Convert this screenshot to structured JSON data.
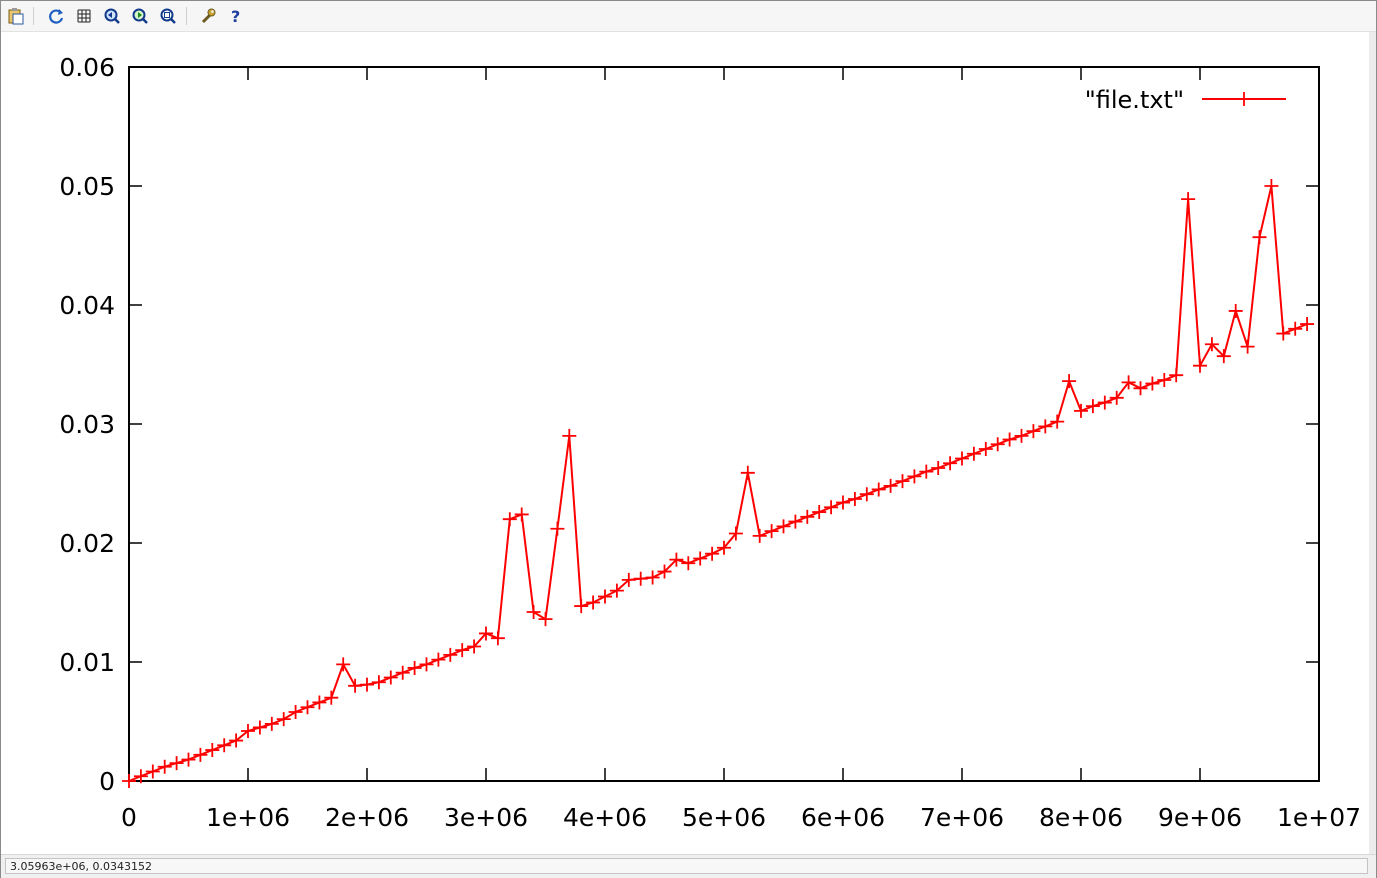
{
  "toolbar": {
    "buttons": [
      {
        "name": "copy-to-clipboard-button",
        "icon": "clipboard-icon"
      },
      {
        "name": "replot-button",
        "icon": "refresh-icon"
      },
      {
        "name": "grid-button",
        "icon": "grid-icon"
      },
      {
        "name": "previous-zoom-button",
        "icon": "zoom-previous-icon"
      },
      {
        "name": "next-zoom-button",
        "icon": "zoom-next-icon"
      },
      {
        "name": "autoscale-button",
        "icon": "zoom-autoscale-icon"
      },
      {
        "name": "settings-button",
        "icon": "wrench-icon"
      },
      {
        "name": "help-button",
        "icon": "help-icon"
      }
    ]
  },
  "status": {
    "coordinates": "3.05963e+06,  0.0343152"
  },
  "colors": {
    "series": "#ff0000",
    "axes": "#000000"
  },
  "chart_data": {
    "type": "line",
    "title": "",
    "xlabel": "",
    "ylabel": "",
    "xlim": [
      0,
      10000000
    ],
    "ylim": [
      0,
      0.06
    ],
    "x_ticks": [
      0,
      1000000,
      2000000,
      3000000,
      4000000,
      5000000,
      6000000,
      7000000,
      8000000,
      9000000,
      10000000
    ],
    "x_tick_labels": [
      "0",
      "1e+06",
      "2e+06",
      "3e+06",
      "4e+06",
      "5e+06",
      "6e+06",
      "7e+06",
      "8e+06",
      "9e+06",
      "1e+07"
    ],
    "y_ticks": [
      0,
      0.01,
      0.02,
      0.03,
      0.04,
      0.05,
      0.06
    ],
    "y_tick_labels": [
      "0",
      "0.01",
      "0.02",
      "0.03",
      "0.04",
      "0.05",
      "0.06"
    ],
    "grid": false,
    "legend_position": "top-right",
    "marker": "plus",
    "series": [
      {
        "name": "\"file.txt\"",
        "x": [
          0,
          100000,
          200000,
          300000,
          400000,
          500000,
          600000,
          700000,
          800000,
          900000,
          1000000,
          1100000,
          1200000,
          1300000,
          1400000,
          1500000,
          1600000,
          1700000,
          1800000,
          1900000,
          2000000,
          2100000,
          2200000,
          2300000,
          2400000,
          2500000,
          2600000,
          2700000,
          2800000,
          2900000,
          3000000,
          3100000,
          3200000,
          3300000,
          3400000,
          3500000,
          3600000,
          3700000,
          3800000,
          3900000,
          4000000,
          4100000,
          4200000,
          4300000,
          4400000,
          4500000,
          4600000,
          4700000,
          4800000,
          4900000,
          5000000,
          5100000,
          5200000,
          5300000,
          5400000,
          5500000,
          5600000,
          5700000,
          5800000,
          5900000,
          6000000,
          6100000,
          6200000,
          6300000,
          6400000,
          6500000,
          6600000,
          6700000,
          6800000,
          6900000,
          7000000,
          7100000,
          7200000,
          7300000,
          7400000,
          7500000,
          7600000,
          7700000,
          7800000,
          7900000,
          8000000,
          8100000,
          8200000,
          8300000,
          8400000,
          8500000,
          8600000,
          8700000,
          8800000,
          8900000,
          9000000,
          9100000,
          9200000,
          9300000,
          9400000,
          9500000,
          9600000,
          9700000,
          9800000,
          9900000
        ],
        "values": [
          0,
          0.0004,
          0.0008,
          0.0012,
          0.0015,
          0.0018,
          0.0022,
          0.0026,
          0.003,
          0.0034,
          0.0042,
          0.0045,
          0.0048,
          0.0052,
          0.0058,
          0.0062,
          0.0066,
          0.007,
          0.0098,
          0.008,
          0.0081,
          0.0083,
          0.0087,
          0.0091,
          0.0095,
          0.0098,
          0.0102,
          0.0106,
          0.011,
          0.0113,
          0.0124,
          0.012,
          0.022,
          0.0224,
          0.0142,
          0.0136,
          0.0212,
          0.029,
          0.0147,
          0.015,
          0.0155,
          0.016,
          0.0169,
          0.017,
          0.0171,
          0.0176,
          0.0186,
          0.0183,
          0.0187,
          0.0191,
          0.0196,
          0.0208,
          0.0259,
          0.0206,
          0.021,
          0.0214,
          0.0218,
          0.0222,
          0.0226,
          0.023,
          0.0234,
          0.0237,
          0.0241,
          0.0245,
          0.0248,
          0.0252,
          0.0256,
          0.026,
          0.0263,
          0.0267,
          0.0271,
          0.0275,
          0.0279,
          0.0283,
          0.0287,
          0.029,
          0.0294,
          0.0298,
          0.0302,
          0.0336,
          0.0311,
          0.0315,
          0.0318,
          0.0322,
          0.0335,
          0.033,
          0.0334,
          0.0337,
          0.0341,
          0.0489,
          0.0349,
          0.0367,
          0.0357,
          0.0395,
          0.0365,
          0.0457,
          0.05,
          0.0376,
          0.038,
          0.0384
        ]
      }
    ]
  }
}
